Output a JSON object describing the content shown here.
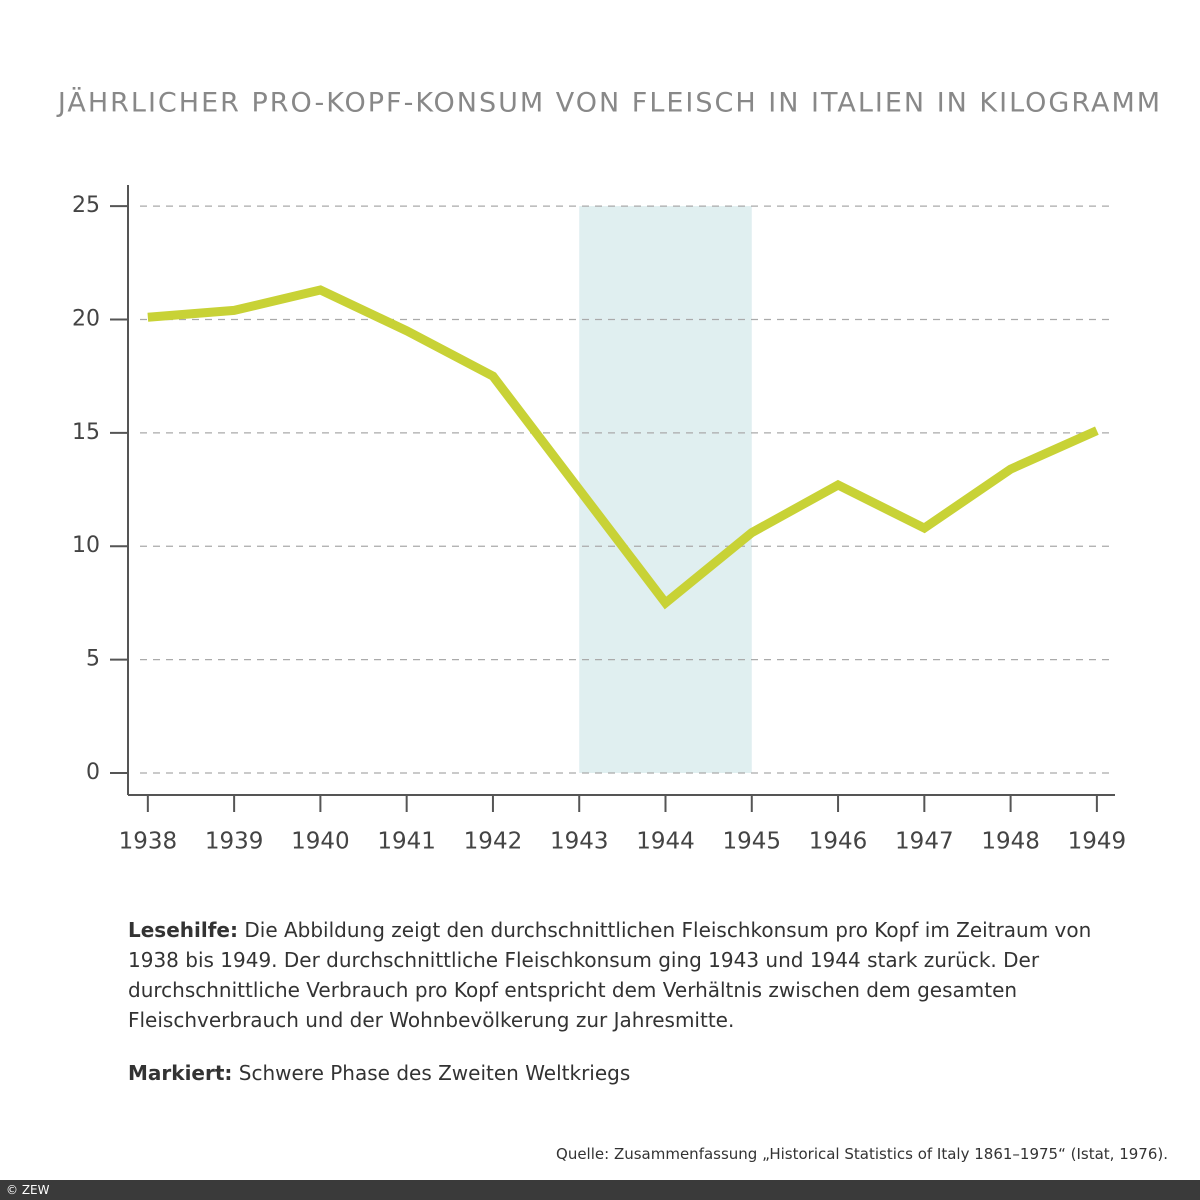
{
  "chart_data": {
    "type": "line",
    "title": "JÄHRLICHER PRO-KOPF-KONSUM VON FLEISCH IN ITALIEN IN KILOGRAMM",
    "x": [
      1938,
      1939,
      1940,
      1941,
      1942,
      1943,
      1944,
      1945,
      1946,
      1947,
      1948,
      1949
    ],
    "values": [
      20.1,
      20.4,
      21.3,
      19.5,
      17.5,
      12.5,
      7.5,
      10.6,
      12.7,
      10.8,
      13.4,
      15.1
    ],
    "color": "#c8d236",
    "xlim": [
      1937.77,
      1949.21
    ],
    "xticks": [
      1938,
      1939,
      1940,
      1941,
      1942,
      1943,
      1944,
      1945,
      1946,
      1947,
      1948,
      1949
    ],
    "ylim": [
      -0.97,
      25.93
    ],
    "yticks": [
      0,
      5,
      10,
      15,
      20,
      25
    ],
    "grid": true,
    "highlight": {
      "x": [
        1943,
        1945
      ],
      "y": [
        0,
        25
      ],
      "color": "#e0eff0"
    }
  },
  "notes": [
    {
      "label": "Lesehilfe:",
      "text": "Die Abbildung zeigt den durchschnittlichen Fleischkonsum pro Kopf im Zeitraum von 1938 bis 1949. Der durchschnittliche Fleischkonsum ging 1943 und 1944 stark zurück. Der durchschnittliche Verbrauch pro Kopf entspricht dem Verhältnis zwischen dem gesamten Fleischverbrauch und der Wohnbevölkerung zur Jahresmitte."
    },
    {
      "label": "Markiert:",
      "text": "Schwere Phase des Zweiten Weltkriegs"
    }
  ],
  "source": "Quelle: Zusammenfassung „Historical Statistics of Italy 1861–1975“ (Istat, 1976).",
  "copyright": "© ZEW"
}
